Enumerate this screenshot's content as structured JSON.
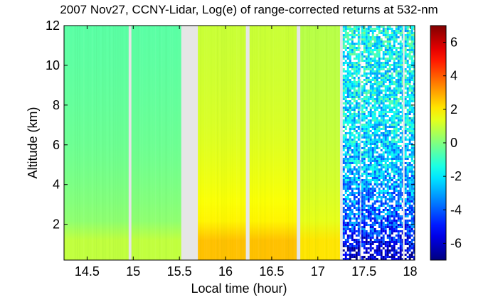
{
  "chart_data": {
    "type": "heatmap",
    "title": "2007 Nov27, CCNY-Lidar, Log(e) of range-corrected returns at 532-nm",
    "xlabel": "Local time (hour)",
    "ylabel": "Altitude (km)",
    "xlim": [
      14.25,
      18.05
    ],
    "ylim": [
      0.2,
      12
    ],
    "x_ticks": [
      {
        "value": 14.5,
        "label": "14.5"
      },
      {
        "value": 15,
        "label": "15"
      },
      {
        "value": 15.5,
        "label": "15.5"
      },
      {
        "value": 16,
        "label": "16"
      },
      {
        "value": 16.5,
        "label": "16.5"
      },
      {
        "value": 17,
        "label": "17"
      },
      {
        "value": 17.5,
        "label": "17.5"
      },
      {
        "value": 18,
        "label": "18"
      }
    ],
    "y_ticks": [
      {
        "value": 2,
        "label": "2"
      },
      {
        "value": 4,
        "label": "4"
      },
      {
        "value": 6,
        "label": "6"
      },
      {
        "value": 8,
        "label": "8"
      },
      {
        "value": 10,
        "label": "10"
      },
      {
        "value": 12,
        "label": "12"
      }
    ],
    "colorbar": {
      "range": [
        -7,
        7
      ],
      "colormap": "jet",
      "ticks": [
        {
          "value": 6,
          "label": "6"
        },
        {
          "value": 4,
          "label": "4"
        },
        {
          "value": 2,
          "label": "2"
        },
        {
          "value": 0,
          "label": "0"
        },
        {
          "value": -2,
          "label": "-2"
        },
        {
          "value": -4,
          "label": "-4"
        },
        {
          "value": -6,
          "label": "-6"
        }
      ]
    },
    "data_gaps_hours": [
      [
        14.95,
        14.98
      ],
      [
        15.52,
        15.7
      ],
      [
        16.22,
        16.26
      ],
      [
        16.77,
        16.81
      ],
      [
        17.24,
        17.27
      ],
      [
        17.46,
        17.47
      ],
      [
        17.92,
        17.94
      ]
    ],
    "segments": [
      {
        "start": 14.25,
        "end": 14.95,
        "surface_value": 0.9,
        "top_value": -0.6,
        "noisy": false
      },
      {
        "start": 14.98,
        "end": 15.52,
        "surface_value": 0.9,
        "top_value": -0.6,
        "noisy": false
      },
      {
        "start": 15.7,
        "end": 16.22,
        "surface_value": 2.6,
        "top_value": 0.9,
        "noisy": false
      },
      {
        "start": 16.26,
        "end": 16.77,
        "surface_value": 2.6,
        "top_value": 0.9,
        "noisy": false
      },
      {
        "start": 16.81,
        "end": 17.24,
        "surface_value": 2.1,
        "top_value": 0.7,
        "noisy": false
      },
      {
        "start": 17.27,
        "end": 17.46,
        "surface_value": -6.5,
        "top_value": -1.5,
        "noisy": true
      },
      {
        "start": 17.47,
        "end": 17.92,
        "surface_value": -6.5,
        "top_value": -1.5,
        "noisy": true
      },
      {
        "start": 17.94,
        "end": 18.05,
        "surface_value": -6.5,
        "top_value": -1.5,
        "noisy": true
      }
    ],
    "gap_color": "#e6e6e6",
    "grid": false
  }
}
